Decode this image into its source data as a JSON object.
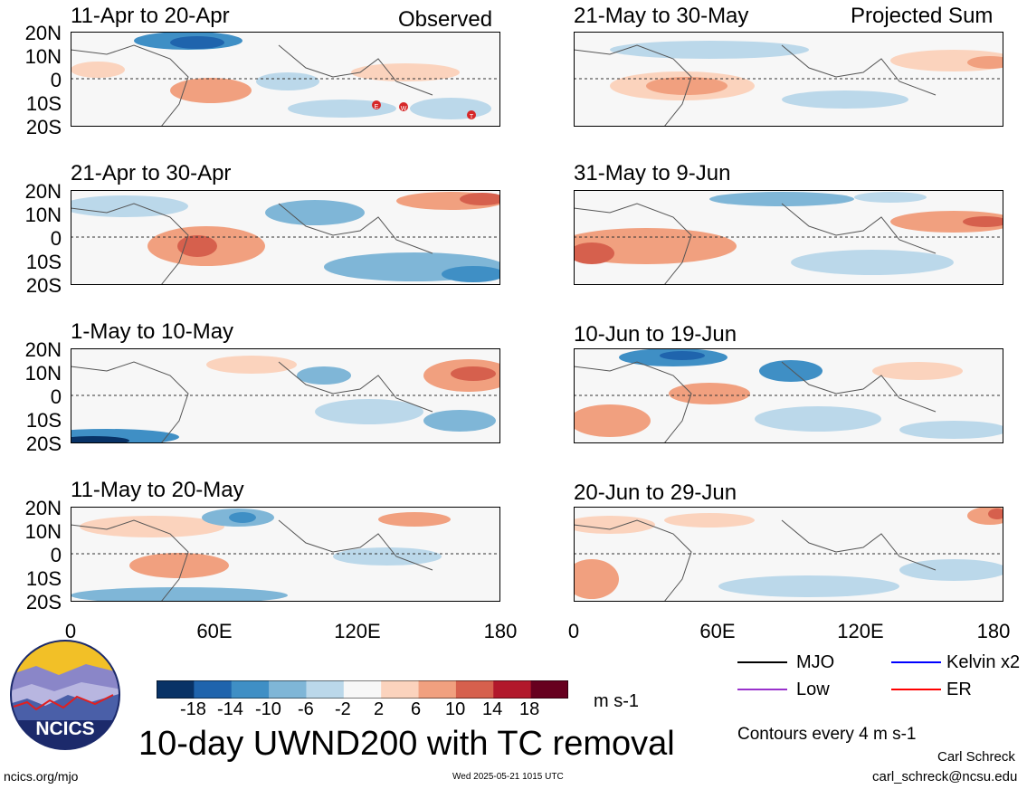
{
  "panels_left": [
    {
      "period": "11-Apr to 20-Apr",
      "tc_marks": [
        "E",
        "W",
        "T"
      ]
    },
    {
      "period": "21-Apr to 30-Apr"
    },
    {
      "period": "1-May to 10-May"
    },
    {
      "period": "11-May to 20-May"
    }
  ],
  "panels_right": [
    {
      "period": "21-May to 30-May"
    },
    {
      "period": "31-May to 9-Jun"
    },
    {
      "period": "10-Jun to 19-Jun"
    },
    {
      "period": "20-Jun to 29-Jun"
    }
  ],
  "labels": {
    "observed": "Observed",
    "projected": "Projected Sum"
  },
  "y_axis": {
    "ticks": [
      "20N",
      "10N",
      "0",
      "10S",
      "20S"
    ]
  },
  "x_axis": {
    "ticks": [
      "0",
      "60E",
      "120E",
      "180"
    ]
  },
  "colorbar": {
    "ticks": [
      "-18",
      "-14",
      "-10",
      "-6",
      "-2",
      "2",
      "6",
      "10",
      "14",
      "18"
    ],
    "unit": "m s-1",
    "colors": [
      "#083266",
      "#1f64ad",
      "#3f8fc5",
      "#7fb6d7",
      "#bbd8ea",
      "#f7f7f7",
      "#fbd3bd",
      "#f1a07f",
      "#d6604d",
      "#b2182b",
      "#67001f"
    ]
  },
  "legend": {
    "items": [
      {
        "label": "MJO",
        "color": "#000000"
      },
      {
        "label": "Kelvin x2",
        "color": "#0000ff"
      },
      {
        "label": "Low",
        "color": "#9932cc"
      },
      {
        "label": "ER",
        "color": "#ff0000"
      }
    ],
    "contours_note": "Contours every 4 m s-1"
  },
  "title": "10-day UWND200 with TC removal",
  "footer": {
    "website": "ncics.org/mjo",
    "timestamp": "Wed 2025-05-21 1015 UTC",
    "author": "Carl Schreck",
    "email": "carl_schreck@ncsu.edu"
  },
  "logo": {
    "text": "NCICS"
  }
}
